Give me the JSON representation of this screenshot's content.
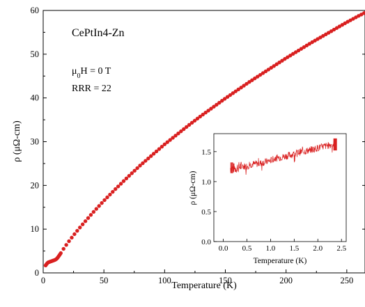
{
  "chart_data": [
    {
      "type": "scatter",
      "title": "",
      "xlabel": "Temperature (K)",
      "ylabel": "ρ (μΩ-cm)",
      "xlim": [
        0,
        265
      ],
      "ylim": [
        0,
        60
      ],
      "xticks": [
        "0",
        "50",
        "100",
        "150",
        "200",
        "250"
      ],
      "yticks": [
        "0",
        "10",
        "20",
        "30",
        "40",
        "50",
        "60"
      ],
      "grid": false,
      "marker_color": "#d92020",
      "annotations": {
        "sample": "CePtIn4-Zn",
        "field_prefix": "μ",
        "field_sub": "0",
        "field_suffix": "H = 0 T",
        "rrr": "RRR = 22"
      },
      "series": [
        {
          "x": [
            2,
            3,
            4,
            5,
            6,
            7,
            8,
            9,
            10,
            11,
            12,
            14,
            17,
            20,
            25,
            30,
            40,
            50,
            60,
            70,
            80,
            90,
            100,
            110,
            120,
            130,
            140,
            150,
            160,
            170,
            180,
            190,
            200,
            210,
            220,
            230,
            240,
            250,
            260,
            265
          ],
          "y": [
            1.7,
            2.1,
            2.4,
            2.5,
            2.6,
            2.7,
            2.8,
            2.9,
            3.0,
            3.2,
            3.5,
            4.3,
            5.6,
            6.8,
            8.6,
            10.3,
            13.5,
            16.5,
            19.3,
            22.0,
            24.6,
            27.0,
            29.4,
            31.6,
            33.8,
            35.9,
            37.9,
            39.9,
            41.8,
            43.7,
            45.5,
            47.3,
            49.1,
            50.8,
            52.5,
            54.1,
            55.7,
            57.3,
            58.8,
            59.5
          ]
        }
      ]
    },
    {
      "type": "line",
      "title": "",
      "xlabel": "Temperature (K)",
      "ylabel": "ρ (μΩ-cm)",
      "xlim": [
        -0.2,
        2.6
      ],
      "ylim": [
        0.0,
        1.8
      ],
      "xticks": [
        "0.0",
        "0.5",
        "1.0",
        "1.5",
        "2.0",
        "2.5"
      ],
      "yticks": [
        "0.0",
        "0.5",
        "1.0",
        "1.5"
      ],
      "line_color": "#d92020",
      "series": [
        {
          "x": [
            0.15,
            0.25,
            0.35,
            0.5,
            0.6,
            0.75,
            0.9,
            1.0,
            1.1,
            1.25,
            1.4,
            1.5,
            1.6,
            1.75,
            1.9,
            2.0,
            2.1,
            2.2,
            2.3,
            2.38
          ],
          "y": [
            1.23,
            1.22,
            1.25,
            1.26,
            1.29,
            1.3,
            1.33,
            1.35,
            1.39,
            1.41,
            1.44,
            1.46,
            1.49,
            1.51,
            1.54,
            1.56,
            1.58,
            1.6,
            1.62,
            1.64
          ]
        }
      ]
    }
  ]
}
